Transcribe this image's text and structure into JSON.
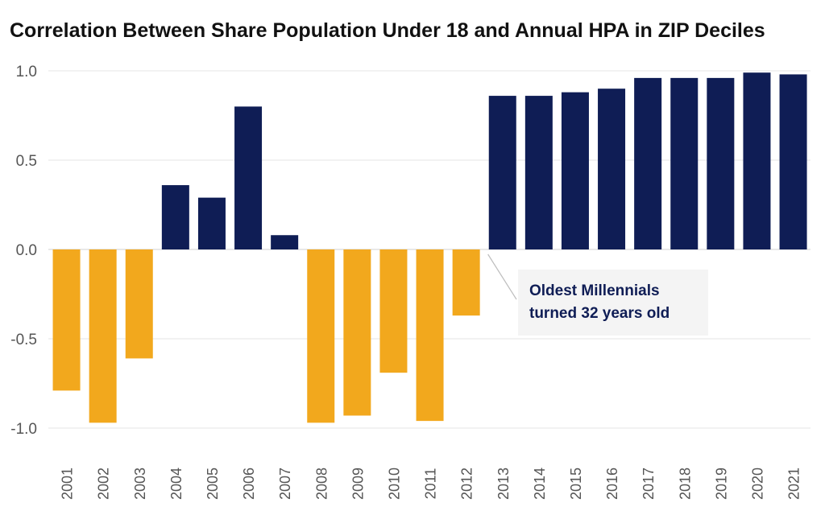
{
  "chart_data": {
    "type": "bar",
    "title": "Correlation Between Share Population Under 18 and Annual HPA in ZIP Deciles",
    "xlabel": "",
    "ylabel": "",
    "categories": [
      "2001",
      "2002",
      "2003",
      "2004",
      "2005",
      "2006",
      "2007",
      "2008",
      "2009",
      "2010",
      "2011",
      "2012",
      "2013",
      "2014",
      "2015",
      "2016",
      "2017",
      "2018",
      "2019",
      "2020",
      "2021"
    ],
    "values": [
      -0.79,
      -0.97,
      -0.61,
      0.36,
      0.29,
      0.8,
      0.08,
      -0.97,
      -0.93,
      -0.69,
      -0.96,
      -0.37,
      0.86,
      0.86,
      0.88,
      0.9,
      0.96,
      0.96,
      0.96,
      0.99,
      0.98
    ],
    "ylim": [
      -1.0,
      1.0
    ],
    "yticks": [
      1.0,
      0.5,
      0.0,
      -0.5,
      -1.0
    ],
    "ytick_labels": [
      "1.0",
      "0.5",
      "0.0",
      "-0.5",
      "-1.0"
    ],
    "grid": true,
    "colors": {
      "positive": "#0f1d55",
      "negative": "#f2a81d",
      "grid": "#e6e6e6",
      "axis_text": "#555555"
    },
    "annotation": {
      "lines": [
        "Oldest Millennials",
        "turned 32 years old"
      ],
      "target_category": "2012"
    }
  }
}
